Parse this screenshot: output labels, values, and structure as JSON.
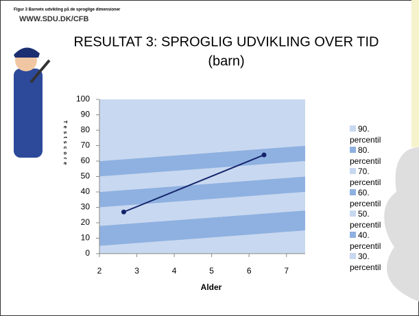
{
  "header": {
    "caption": "Figur 3 Barnets udvikling på de sproglige dimensioner",
    "site": "WWW.SDU.DK/CFB",
    "title": "RESULTAT 3: SPROGLIG UDVIKLING OVER TID",
    "subtitle": "(barn)"
  },
  "chart_data": {
    "type": "area_line",
    "xlabel": "Alder",
    "ylabel": "Testscore",
    "xlim": [
      2,
      7.5
    ],
    "xticks": [
      2,
      3,
      4,
      5,
      6,
      7
    ],
    "ylim": [
      0,
      100
    ],
    "yticks": [
      0,
      10,
      20,
      30,
      40,
      50,
      60,
      70,
      80,
      90,
      100
    ],
    "band_x": [
      2,
      7.5
    ],
    "series": [
      {
        "name": "90. percentil",
        "color": "#c8d8f0",
        "values": [
          40,
          30
        ]
      },
      {
        "name": "80. percentil",
        "color": "#8fb1e1",
        "values": [
          10,
          10
        ]
      },
      {
        "name": "70. percentil",
        "color": "#c8d8f0",
        "values": [
          10,
          10
        ]
      },
      {
        "name": "60. percentil",
        "color": "#8fb1e1",
        "values": [
          10,
          10
        ]
      },
      {
        "name": "50. percentil",
        "color": "#c8d8f0",
        "values": [
          12,
          12
        ]
      },
      {
        "name": "40. percentil",
        "color": "#8fb1e1",
        "values": [
          13,
          13
        ]
      },
      {
        "name": "30. percentil",
        "color": "#c8d8f0",
        "values": [
          5,
          15
        ]
      }
    ],
    "line": {
      "color": "#14246a",
      "x": [
        2.65,
        6.4
      ],
      "values": [
        27,
        64
      ]
    }
  }
}
